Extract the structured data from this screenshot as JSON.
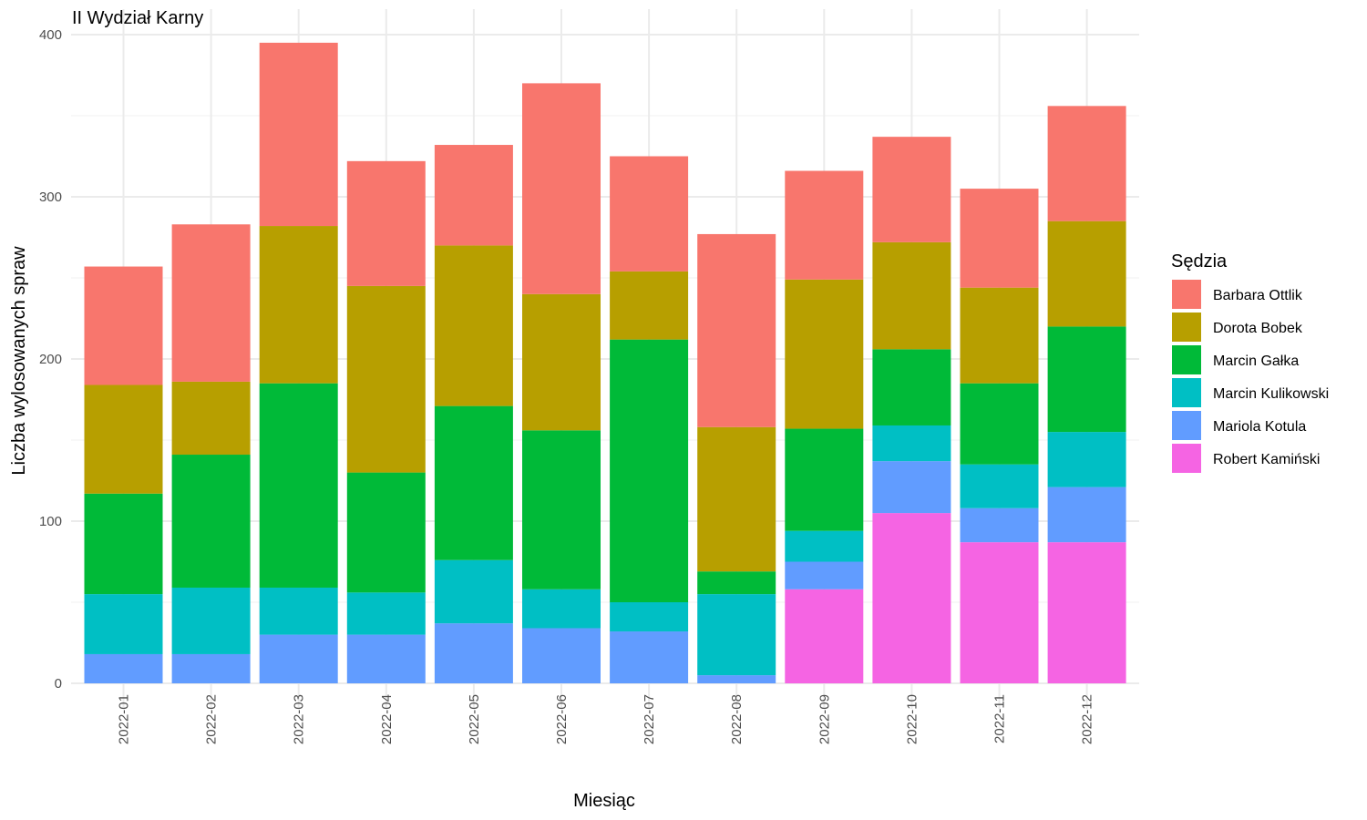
{
  "chart_data": {
    "type": "bar",
    "stacked": true,
    "title": "II Wydział Karny",
    "xlabel": "Miesiąc",
    "ylabel": "Liczba wylosowanych spraw",
    "ylim": [
      0,
      400
    ],
    "yticks": [
      0,
      100,
      200,
      300,
      400
    ],
    "grid": true,
    "legend": {
      "title": "Sędzia",
      "position": "right"
    },
    "categories": [
      "2022-01",
      "2022-02",
      "2022-03",
      "2022-04",
      "2022-05",
      "2022-06",
      "2022-07",
      "2022-08",
      "2022-09",
      "2022-10",
      "2022-11",
      "2022-12"
    ],
    "series": [
      {
        "name": "Barbara Ottlik",
        "color": "#F8766D",
        "values": [
          73,
          97,
          113,
          77,
          62,
          130,
          71,
          119,
          67,
          65,
          61,
          71
        ]
      },
      {
        "name": "Dorota Bobek",
        "color": "#B79F00",
        "values": [
          67,
          45,
          97,
          115,
          99,
          84,
          42,
          89,
          92,
          66,
          59,
          65
        ]
      },
      {
        "name": "Marcin Gałka",
        "color": "#00BA38",
        "values": [
          62,
          82,
          126,
          74,
          95,
          98,
          162,
          14,
          63,
          47,
          50,
          65
        ]
      },
      {
        "name": "Marcin Kulikowski",
        "color": "#00BFC4",
        "values": [
          37,
          41,
          29,
          26,
          39,
          24,
          18,
          50,
          19,
          22,
          27,
          34
        ]
      },
      {
        "name": "Mariola Kotula",
        "color": "#619CFF",
        "values": [
          18,
          18,
          30,
          30,
          37,
          34,
          32,
          5,
          17,
          32,
          21,
          34
        ]
      },
      {
        "name": "Robert Kamiński",
        "color": "#F564E3",
        "values": [
          0,
          0,
          0,
          0,
          0,
          0,
          0,
          0,
          58,
          105,
          87,
          87
        ]
      }
    ]
  }
}
